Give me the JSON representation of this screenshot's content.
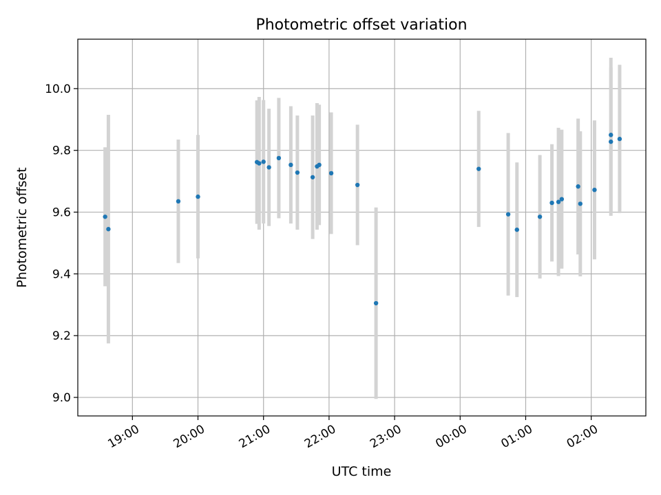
{
  "chart_data": {
    "type": "scatter",
    "title": "Photometric offset variation",
    "xlabel": "UTC time",
    "ylabel": "Photometric offset",
    "x_tick_labels": [
      "19:00",
      "20:00",
      "21:00",
      "22:00",
      "23:00",
      "00:00",
      "01:00",
      "02:00"
    ],
    "y_tick_labels": [
      "9.0",
      "9.2",
      "9.4",
      "9.6",
      "9.8",
      "10.0"
    ],
    "ylim": [
      8.94,
      10.16
    ],
    "xlim": [
      "18:10",
      "02:50"
    ],
    "grid": true,
    "marker_color": "#1f77b4",
    "errorbar_color": "#d3d3d3",
    "series": [
      {
        "points": [
          {
            "t": "18:35",
            "y": 9.585,
            "err": 0.225
          },
          {
            "t": "18:38",
            "y": 9.545,
            "err": 0.37
          },
          {
            "t": "19:42",
            "y": 9.635,
            "err": 0.2
          },
          {
            "t": "20:00",
            "y": 9.65,
            "err": 0.2
          },
          {
            "t": "20:54",
            "y": 9.762,
            "err": 0.2
          },
          {
            "t": "20:56",
            "y": 9.758,
            "err": 0.215
          },
          {
            "t": "21:00",
            "y": 9.763,
            "err": 0.2
          },
          {
            "t": "21:05",
            "y": 9.745,
            "err": 0.19
          },
          {
            "t": "21:14",
            "y": 9.775,
            "err": 0.195
          },
          {
            "t": "21:25",
            "y": 9.753,
            "err": 0.19
          },
          {
            "t": "21:31",
            "y": 9.728,
            "err": 0.185
          },
          {
            "t": "21:45",
            "y": 9.713,
            "err": 0.2
          },
          {
            "t": "21:49",
            "y": 9.748,
            "err": 0.205
          },
          {
            "t": "21:51",
            "y": 9.753,
            "err": 0.195
          },
          {
            "t": "22:02",
            "y": 9.726,
            "err": 0.197
          },
          {
            "t": "22:26",
            "y": 9.688,
            "err": 0.195
          },
          {
            "t": "22:43",
            "y": 9.305,
            "err": 0.31
          },
          {
            "t": "00:17",
            "y": 9.74,
            "err": 0.188
          },
          {
            "t": "00:44",
            "y": 9.593,
            "err": 0.263
          },
          {
            "t": "00:52",
            "y": 9.543,
            "err": 0.218
          },
          {
            "t": "01:13",
            "y": 9.585,
            "err": 0.2
          },
          {
            "t": "01:24",
            "y": 9.63,
            "err": 0.19
          },
          {
            "t": "01:30",
            "y": 9.633,
            "err": 0.24
          },
          {
            "t": "01:33",
            "y": 9.642,
            "err": 0.225
          },
          {
            "t": "01:48",
            "y": 9.683,
            "err": 0.22
          },
          {
            "t": "01:50",
            "y": 9.627,
            "err": 0.235
          },
          {
            "t": "02:03",
            "y": 9.672,
            "err": 0.225
          },
          {
            "t": "02:18",
            "y": 9.85,
            "err": 0.25
          },
          {
            "t": "02:18",
            "y": 9.828,
            "err": 0.24
          },
          {
            "t": "02:26",
            "y": 9.837,
            "err": 0.24
          }
        ]
      }
    ]
  }
}
